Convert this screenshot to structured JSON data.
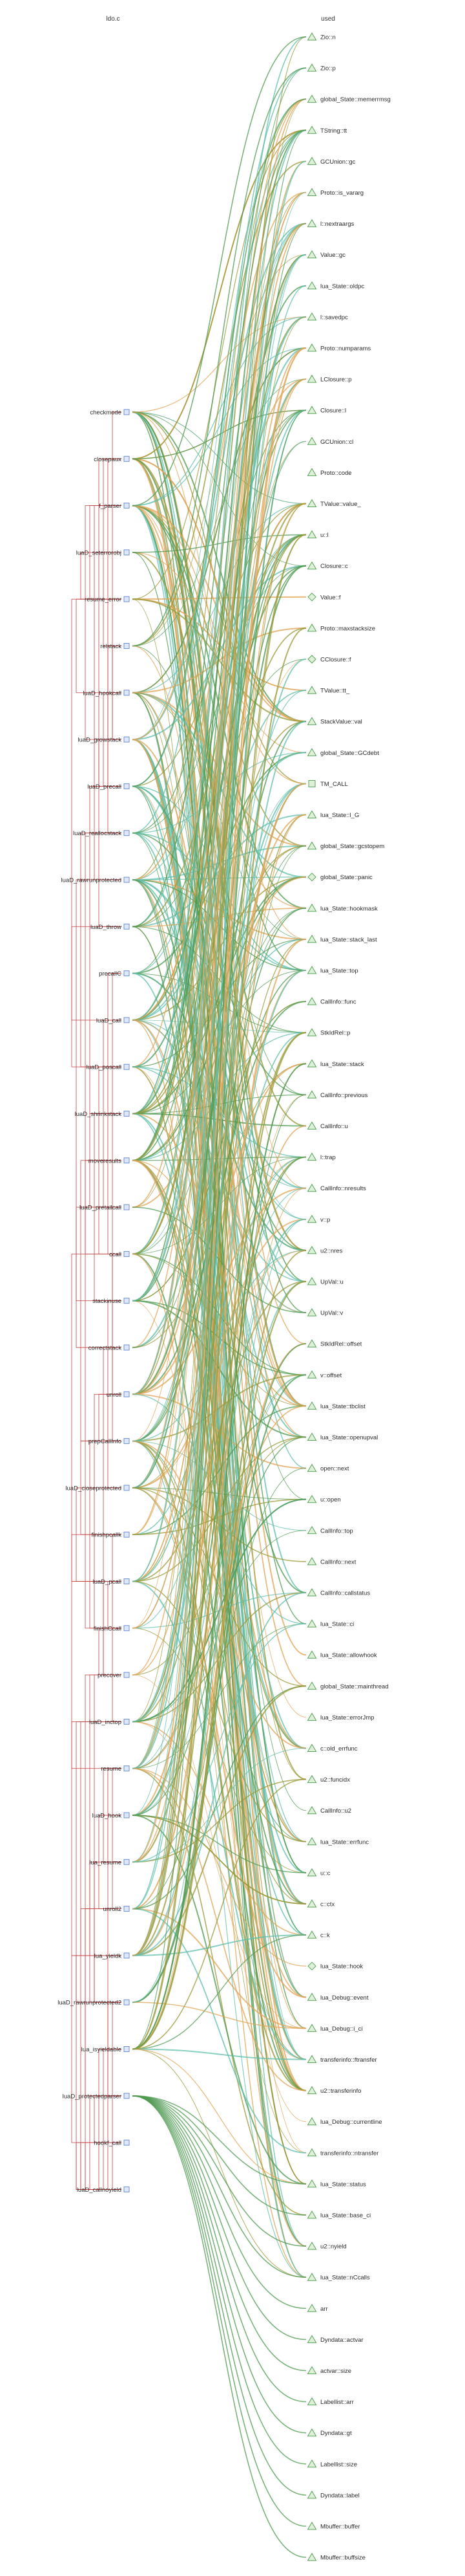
{
  "columns": {
    "left_title": "ldo.c",
    "right_title": "used"
  },
  "functions": [
    "checkmode",
    "closepaux",
    "f_parser",
    "luaD_seterrorobj",
    "resume_error",
    "relstack",
    "luaD_hookcall",
    "luaD_growstack",
    "luaD_precall",
    "luaD_reallocstack",
    "luaD_rawrunprotected",
    "luaD_throw",
    "precallC",
    "luaD_call",
    "luaD_poscall",
    "luaD_shrinkstack",
    "moveresults",
    "luaD_pretailcall",
    "ccall",
    "stackinuse",
    "correctstack",
    "unroll",
    "prepCallInfo",
    "luaD_closeprotected",
    "finishpcallk",
    "luaD_pcall",
    "finishCcall",
    "precover",
    "luaD_inctop",
    "resume",
    "luaD_hook",
    "lua_resume",
    "unroll2",
    "lua_yieldk",
    "luaD_rawrunprotected2",
    "lua_isyieldable",
    "luaD_protectedparser",
    "hookf_call",
    "luaD_callnoyield"
  ],
  "fields": [
    {
      "label": "Zio::n",
      "shape": "triangle"
    },
    {
      "label": "Zio::p",
      "shape": "triangle"
    },
    {
      "label": "global_State::memerrmsg",
      "shape": "triangle"
    },
    {
      "label": "TString::tt",
      "shape": "triangle"
    },
    {
      "label": "GCUnion::gc",
      "shape": "triangle"
    },
    {
      "label": "Proto::is_vararg",
      "shape": "triangle"
    },
    {
      "label": "l::nextraargs",
      "shape": "triangle"
    },
    {
      "label": "Value::gc",
      "shape": "triangle"
    },
    {
      "label": "lua_State::oldpc",
      "shape": "triangle"
    },
    {
      "label": "l::savedpc",
      "shape": "triangle"
    },
    {
      "label": "Proto::numparams",
      "shape": "triangle"
    },
    {
      "label": "LClosure::p",
      "shape": "triangle"
    },
    {
      "label": "Closure::l",
      "shape": "triangle"
    },
    {
      "label": "GCUnion::cl",
      "shape": "triangle"
    },
    {
      "label": "Proto::code",
      "shape": "triangle"
    },
    {
      "label": "TValue::value_",
      "shape": "triangle"
    },
    {
      "label": "u::l",
      "shape": "triangle"
    },
    {
      "label": "Closure::c",
      "shape": "triangle"
    },
    {
      "label": "Value::f",
      "shape": "diamond"
    },
    {
      "label": "Proto::maxstacksize",
      "shape": "triangle"
    },
    {
      "label": "CClosure::f",
      "shape": "diamond"
    },
    {
      "label": "TValue::tt_",
      "shape": "triangle"
    },
    {
      "label": "StackValue::val",
      "shape": "triangle"
    },
    {
      "label": "global_State::GCdebt",
      "shape": "triangle"
    },
    {
      "label": "TM_CALL",
      "shape": "square"
    },
    {
      "label": "lua_State::l_G",
      "shape": "triangle"
    },
    {
      "label": "global_State::gcstopem",
      "shape": "triangle"
    },
    {
      "label": "global_State::panic",
      "shape": "diamond"
    },
    {
      "label": "lua_State::hookmask",
      "shape": "triangle"
    },
    {
      "label": "lua_State::stack_last",
      "shape": "triangle"
    },
    {
      "label": "lua_State::top",
      "shape": "triangle"
    },
    {
      "label": "CallInfo::func",
      "shape": "triangle"
    },
    {
      "label": "StkIdRel::p",
      "shape": "triangle"
    },
    {
      "label": "lua_State::stack",
      "shape": "triangle"
    },
    {
      "label": "CallInfo::previous",
      "shape": "triangle"
    },
    {
      "label": "CallInfo::u",
      "shape": "triangle"
    },
    {
      "label": "l::trap",
      "shape": "triangle"
    },
    {
      "label": "CallInfo::nresults",
      "shape": "triangle"
    },
    {
      "label": "v::p",
      "shape": "triangle"
    },
    {
      "label": "u2::nres",
      "shape": "triangle"
    },
    {
      "label": "UpVal::u",
      "shape": "triangle"
    },
    {
      "label": "UpVal::v",
      "shape": "triangle"
    },
    {
      "label": "StkIdRel::offset",
      "shape": "triangle"
    },
    {
      "label": "v::offset",
      "shape": "triangle"
    },
    {
      "label": "lua_State::tbclist",
      "shape": "triangle"
    },
    {
      "label": "lua_State::openupval",
      "shape": "triangle"
    },
    {
      "label": "open::next",
      "shape": "triangle"
    },
    {
      "label": "u::open",
      "shape": "triangle"
    },
    {
      "label": "CallInfo::top",
      "shape": "triangle"
    },
    {
      "label": "CallInfo::next",
      "shape": "triangle"
    },
    {
      "label": "CallInfo::callstatus",
      "shape": "triangle"
    },
    {
      "label": "lua_State::ci",
      "shape": "triangle"
    },
    {
      "label": "lua_State::allowhook",
      "shape": "triangle"
    },
    {
      "label": "global_State::mainthread",
      "shape": "triangle"
    },
    {
      "label": "lua_State::errorJmp",
      "shape": "triangle"
    },
    {
      "label": "c::old_errfunc",
      "shape": "triangle"
    },
    {
      "label": "u2::funcidx",
      "shape": "triangle"
    },
    {
      "label": "CallInfo::u2",
      "shape": "triangle"
    },
    {
      "label": "lua_State::errfunc",
      "shape": "triangle"
    },
    {
      "label": "u::c",
      "shape": "triangle"
    },
    {
      "label": "c::ctx",
      "shape": "triangle"
    },
    {
      "label": "c::k",
      "shape": "triangle"
    },
    {
      "label": "lua_State::hook",
      "shape": "diamond"
    },
    {
      "label": "lua_Debug::event",
      "shape": "triangle"
    },
    {
      "label": "lua_Debug::i_ci",
      "shape": "triangle"
    },
    {
      "label": "transferinfo::ftransfer",
      "shape": "triangle"
    },
    {
      "label": "u2::transferinfo",
      "shape": "triangle"
    },
    {
      "label": "lua_Debug::currentline",
      "shape": "triangle"
    },
    {
      "label": "transferinfo::ntransfer",
      "shape": "triangle"
    },
    {
      "label": "lua_State::status",
      "shape": "triangle"
    },
    {
      "label": "lua_State::base_ci",
      "shape": "triangle"
    },
    {
      "label": "u2::nyield",
      "shape": "triangle"
    },
    {
      "label": "lua_State::nCcalls",
      "shape": "triangle"
    },
    {
      "label": "arr",
      "shape": "triangle"
    },
    {
      "label": "Dyndata::actvar",
      "shape": "triangle"
    },
    {
      "label": "actvar::size",
      "shape": "triangle"
    },
    {
      "label": "Labellist::arr",
      "shape": "triangle"
    },
    {
      "label": "Dyndata::gt",
      "shape": "triangle"
    },
    {
      "label": "Labellist::size",
      "shape": "triangle"
    },
    {
      "label": "Dyndata::label",
      "shape": "triangle"
    },
    {
      "label": "Mbuffer::buffer",
      "shape": "triangle"
    },
    {
      "label": "Mbuffer::buffsize",
      "shape": "triangle"
    }
  ],
  "colors": {
    "edge_green": "#4f9a52",
    "edge_orange": "#e0a65a",
    "edge_teal": "#61bfae",
    "edge_olive": "#9a9a3a",
    "call_edge": "#c0393b",
    "function_node": "#6f8fd6",
    "field_node_stroke": "#57a45a",
    "field_node_fill": "#dff0d8"
  }
}
